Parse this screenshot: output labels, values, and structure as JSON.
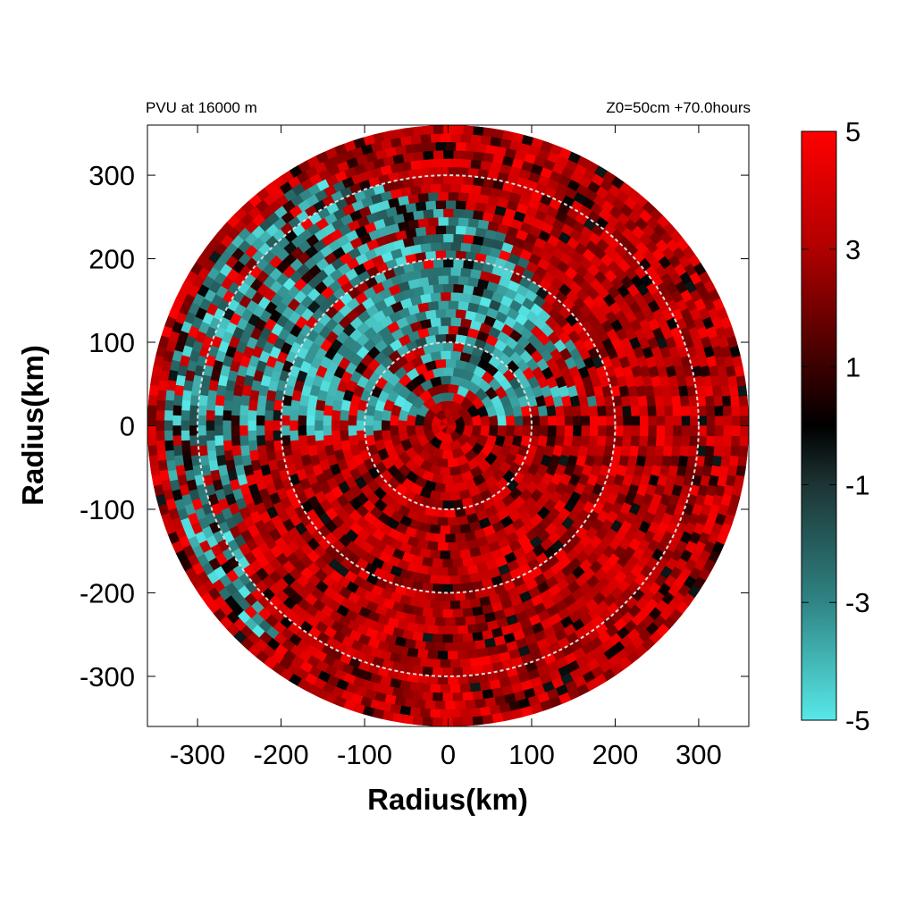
{
  "chart_data": {
    "type": "heatmap",
    "title_left": "PVU at 16000 m",
    "title_right": "Z0=50cm  +70.0hours",
    "xlabel": "Radius(km)",
    "ylabel": "Radius(km)",
    "xlim": [
      -360,
      360
    ],
    "ylim": [
      -360,
      360
    ],
    "x_ticks": [
      -300,
      -200,
      -100,
      0,
      100,
      200,
      300
    ],
    "y_ticks": [
      300,
      200,
      100,
      0,
      -100,
      -200,
      -300
    ],
    "domain_radius": 360,
    "range_rings": [
      100,
      200,
      300
    ],
    "colorbar": {
      "min": -5,
      "max": 5,
      "ticks": [
        5,
        3,
        1,
        -1,
        -3,
        -5
      ],
      "colors": [
        {
          "value": -5,
          "color": "#58e8e8"
        },
        {
          "value": -3,
          "color": "#2f8585"
        },
        {
          "value": -1,
          "color": "#1d3434"
        },
        {
          "value": 0,
          "color": "#000000"
        },
        {
          "value": 1,
          "color": "#3a0000"
        },
        {
          "value": 3,
          "color": "#b00000"
        },
        {
          "value": 5,
          "color": "#ff0000"
        }
      ]
    },
    "grid": false,
    "legend": "colorbar right"
  }
}
